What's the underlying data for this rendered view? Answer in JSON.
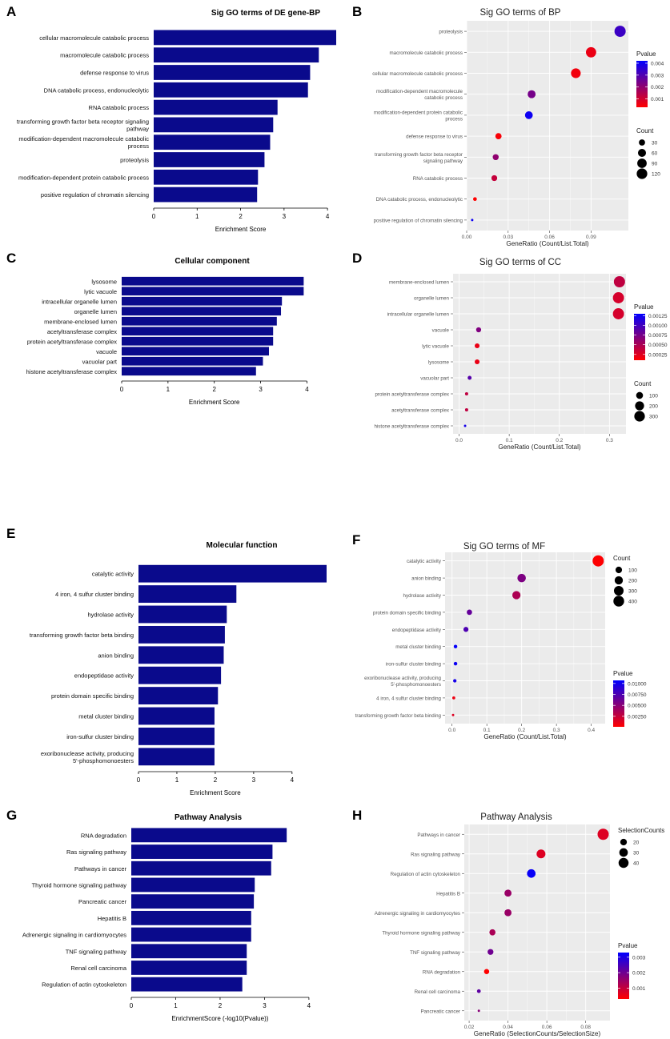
{
  "colors": {
    "bar": "#0a0a8c",
    "panel_bg": "#ebebeb",
    "grid": "#ffffff",
    "low": "#ff0000",
    "high": "#0000ff"
  },
  "panel_labels": [
    "A",
    "B",
    "C",
    "D",
    "E",
    "F",
    "G",
    "H"
  ],
  "chart_data": [
    {
      "id": "A",
      "type": "bar",
      "title": "Sig GO terms of DE gene-BP",
      "categories": [
        "cellular macromolecule catabolic process",
        "macromolecule catabolic process",
        "defense response to virus",
        "DNA catabolic process, endonucleolytic",
        "RNA catabolic process",
        "transforming growth factor beta receptor signaling pathway",
        "modification-dependent macromolecule catabolic process",
        "proteolysis",
        "modification-dependent protein catabolic process",
        "positive regulation of chromatin silencing"
      ],
      "values": [
        4.2,
        3.8,
        3.6,
        3.55,
        2.85,
        2.75,
        2.68,
        2.55,
        2.4,
        2.38
      ],
      "xlabel": "Enrichment Score",
      "xlim": [
        0,
        4.2
      ],
      "xticks": [
        0,
        1,
        2,
        3,
        4
      ]
    },
    {
      "id": "B",
      "type": "scatter",
      "title": "Sig GO terms of BP",
      "categories": [
        "proteolysis",
        "macromolecule catabolic process",
        "cellular macromolecule catabolic process",
        "modification-dependent macromolecule catabolic process",
        "modification-dependent protein catabolic process",
        "defense response to virus",
        "transforming growth factor beta receptor signaling pathway",
        "RNA catabolic process",
        "DNA catabolic process, endonucleolytic",
        "positive regulation of chromatin silencing"
      ],
      "x": [
        0.111,
        0.09,
        0.079,
        0.047,
        0.045,
        0.023,
        0.021,
        0.02,
        0.006,
        0.004
      ],
      "pvalue": [
        0.0033,
        0.0006,
        0.0005,
        0.0024,
        0.004,
        0.0004,
        0.002,
        0.0012,
        0.0003,
        0.004
      ],
      "count": [
        138,
        111,
        97,
        58,
        55,
        30,
        27,
        25,
        8,
        5
      ],
      "xlabel": "GeneRatio (Count/List.Total)",
      "xlim": [
        0,
        0.117
      ],
      "xticks": [
        0.0,
        0.03,
        0.06,
        0.09
      ],
      "color_legend": {
        "title": "Pvalue",
        "range": [
          0.0003,
          0.0042
        ],
        "ticks": [
          0.004,
          0.003,
          0.002,
          0.001
        ]
      },
      "size_legend": {
        "title": "Count",
        "values": [
          30,
          60,
          90,
          120
        ],
        "range": [
          5,
          138
        ]
      }
    },
    {
      "id": "C",
      "type": "bar",
      "title": "Cellular component",
      "categories": [
        "lysosome",
        "lytic vacuole",
        "intracellular organelle lumen",
        "organelle lumen",
        "membrane-enclosed lumen",
        "acetyltransferase complex",
        "protein acetyltransferase complex",
        "vacuole",
        "vacuolar part",
        "histone acetyltransferase complex"
      ],
      "values": [
        3.93,
        3.93,
        3.46,
        3.44,
        3.35,
        3.27,
        3.27,
        3.18,
        3.05,
        2.9
      ],
      "xlabel": "Enrichment Score",
      "xlim": [
        0,
        4.2
      ],
      "xticks": [
        0,
        1,
        2,
        3,
        4
      ]
    },
    {
      "id": "D",
      "type": "scatter",
      "title": "Sig GO terms of CC",
      "categories": [
        "membrane-enclosed lumen",
        "organelle lumen",
        "intracellular organelle lumen",
        "vacuole",
        "lytic vacuole",
        "lysosome",
        "vacuolar part",
        "protein acetyltransferase complex",
        "acetyltransferase complex",
        "histone acetyltransferase complex"
      ],
      "x": [
        0.32,
        0.318,
        0.318,
        0.039,
        0.036,
        0.036,
        0.021,
        0.015,
        0.015,
        0.012
      ],
      "pvalue": [
        0.0004,
        0.0003,
        0.0003,
        0.0007,
        0.0002,
        0.0002,
        0.0009,
        0.0004,
        0.0004,
        0.0012
      ],
      "count": [
        345,
        342,
        342,
        42,
        38,
        38,
        22,
        15,
        15,
        12
      ],
      "xlabel": "GeneRatio (Count/List.Total)",
      "xlim": [
        -0.012,
        0.333
      ],
      "xticks": [
        0.0,
        0.1,
        0.2,
        0.3
      ],
      "color_legend": {
        "title": "Pvalue",
        "range": [
          0.0001,
          0.0013
        ],
        "ticks": [
          0.00125,
          0.001,
          0.00075,
          0.0005,
          0.00025
        ]
      },
      "size_legend": {
        "title": "Count",
        "values": [
          100,
          200,
          300
        ],
        "range": [
          12,
          345
        ]
      }
    },
    {
      "id": "E",
      "type": "bar",
      "title": "Molecular function",
      "categories": [
        "catalytic activity",
        "4 iron, 4 sulfur cluster binding",
        "hydrolase activity",
        "transforming growth factor beta binding",
        "anion binding",
        "endopeptidase activity",
        "protein domain specific binding",
        "metal cluster binding",
        "iron-sulfur cluster binding",
        "exoribonuclease activity, producing 5'-phosphomonoesters"
      ],
      "values": [
        4.9,
        2.55,
        2.3,
        2.25,
        2.22,
        2.15,
        2.07,
        1.98,
        1.98,
        1.98
      ],
      "xlabel": "Enrichment Score",
      "xlim": [
        0,
        4.9
      ],
      "xticks": [
        0,
        1,
        2,
        3,
        4
      ]
    },
    {
      "id": "F",
      "type": "scatter",
      "title": "Sig GO terms of MF",
      "categories": [
        "catalytic activity",
        "anion binding",
        "hydrolase activity",
        "protein domain specific binding",
        "endopeptidase activity",
        "metal cluster binding",
        "iron-sulfur cluster binding",
        "exoribonuclease activity, producing 5'-phosphomonoesters",
        "4 iron, 4 sulfur cluster binding",
        "transforming growth factor beta binding"
      ],
      "x": [
        0.42,
        0.2,
        0.185,
        0.05,
        0.04,
        0.01,
        0.01,
        0.008,
        0.005,
        0.003
      ],
      "pvalue": [
        0.0002,
        0.0055,
        0.0035,
        0.0065,
        0.0075,
        0.0105,
        0.0102,
        0.0098,
        0.0008,
        0.0015
      ],
      "count": [
        445,
        212,
        196,
        53,
        42,
        11,
        11,
        9,
        5,
        3
      ],
      "xlabel": "GeneRatio (Count/List.Total)",
      "xlim": [
        -0.02,
        0.44
      ],
      "xticks": [
        0.0,
        0.1,
        0.2,
        0.3,
        0.4
      ],
      "color_legend": {
        "title": "Pvalue",
        "range": [
          0.0001,
          0.0107
        ],
        "ticks": [
          0.01,
          0.0075,
          0.005,
          0.0025
        ]
      },
      "size_legend": {
        "title": "Count",
        "values": [
          100,
          200,
          300,
          400
        ],
        "range": [
          3,
          445
        ]
      }
    },
    {
      "id": "G",
      "type": "bar",
      "title": "Pathway Analysis",
      "categories": [
        "RNA degradation",
        "Ras signaling pathway",
        "Pathways in cancer",
        "Thyroid hormone signaling pathway",
        "Pancreatic cancer",
        "Hepatitis B",
        "Adrenergic signaling in cardiomyocytes",
        "TNF signaling pathway",
        "Renal cell carcinoma",
        "Regulation of actin cytoskeleton"
      ],
      "values": [
        3.5,
        3.18,
        3.15,
        2.78,
        2.76,
        2.7,
        2.7,
        2.6,
        2.6,
        2.5
      ],
      "xlabel": "EnrichmentScore (-log10(Pvalue))",
      "xlim": [
        0,
        4.2
      ],
      "xticks": [
        0,
        1,
        2,
        3,
        4
      ]
    },
    {
      "id": "H",
      "type": "scatter",
      "title": "Pathway Analysis",
      "categories": [
        "Pathways in cancer",
        "Ras signaling pathway",
        "Regulation of actin cytoskeleton",
        "Hepatitis B",
        "Adrenergic signaling in cardiomyocytes",
        "Thyroid hormone signaling pathway",
        "TNF signaling pathway",
        "RNA degradation",
        "Renal cell carcinoma",
        "Pancreatic cancer"
      ],
      "x": [
        0.089,
        0.057,
        0.052,
        0.04,
        0.04,
        0.032,
        0.031,
        0.029,
        0.025,
        0.025
      ],
      "pvalue": [
        0.0007,
        0.0007,
        0.0032,
        0.0015,
        0.0015,
        0.0013,
        0.002,
        0.0003,
        0.0022,
        0.0017
      ],
      "count": [
        50,
        32,
        30,
        22,
        22,
        18,
        17,
        15,
        12,
        11
      ],
      "xlabel": "GeneRatio (SelectionCounts/SelectionSize)",
      "xlim": [
        0.0175,
        0.0925
      ],
      "xticks": [
        0.02,
        0.04,
        0.06,
        0.08
      ],
      "color_legend": {
        "title": "Pvalue",
        "range": [
          0.0003,
          0.0033
        ],
        "ticks": [
          0.003,
          0.002,
          0.001
        ]
      },
      "size_legend": {
        "title": "SelectionCounts",
        "values": [
          20,
          30,
          40
        ],
        "range": [
          11,
          50
        ]
      }
    }
  ]
}
